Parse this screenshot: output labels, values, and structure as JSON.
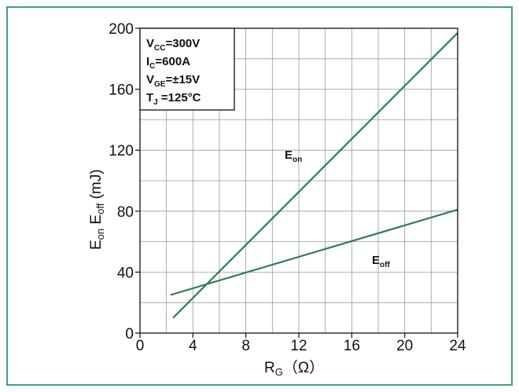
{
  "chart_data": {
    "type": "line",
    "title": "",
    "xlabel": {
      "main": "R",
      "sub": "G",
      "unit": "（Ω）"
    },
    "ylabel": {
      "p1": "E",
      "s1": "on",
      "p2": " E",
      "s2": "off",
      "unit": " (mJ)"
    },
    "xlim": [
      0,
      24
    ],
    "ylim": [
      0,
      200
    ],
    "xticks": [
      0,
      4,
      8,
      12,
      16,
      20,
      24
    ],
    "yticks": [
      0,
      40,
      80,
      120,
      160,
      200
    ],
    "grid": true,
    "conditions": [
      {
        "main": "V",
        "sub": "CC",
        "rest": "=300V"
      },
      {
        "main": "I",
        "sub": "C",
        "rest": "=600A"
      },
      {
        "main": "V",
        "sub": "GE",
        "rest": "=±15V"
      },
      {
        "main": "T",
        "sub": "J",
        "rest": " =125°C"
      }
    ],
    "series": [
      {
        "name": "Eon",
        "label_main": "E",
        "label_sub": "on",
        "x": [
          2.5,
          24
        ],
        "y": [
          10,
          197
        ],
        "color": "#2e7d4f"
      },
      {
        "name": "Eoff",
        "label_main": "E",
        "label_sub": "off",
        "x": [
          2.3,
          24
        ],
        "y": [
          25,
          81
        ],
        "color": "#2e7d4f"
      }
    ]
  }
}
